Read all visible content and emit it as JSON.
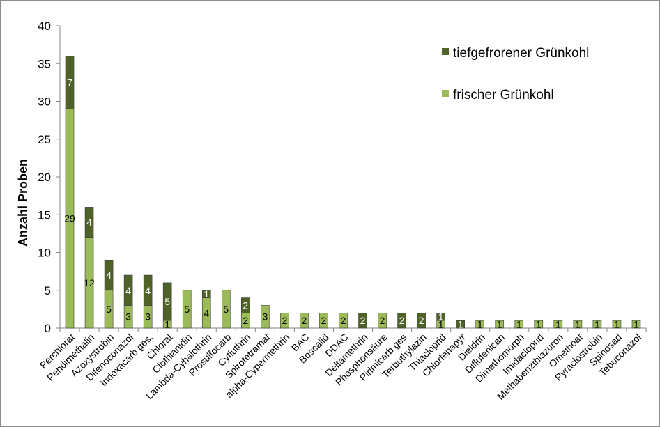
{
  "chart_data": {
    "type": "bar",
    "stacked": true,
    "ylabel": "Anzahl Proben",
    "xlabel": "",
    "ylim": [
      0,
      40
    ],
    "yticks": [
      0,
      5,
      10,
      15,
      20,
      25,
      30,
      35,
      40
    ],
    "grid": false,
    "legend_position": "top-right",
    "categories": [
      "Perchlorat",
      "Pendimethalin",
      "Azoxystrobin",
      "Difenoconazol",
      "Indoxacarb ges.",
      "Chlorat",
      "Clothianidin",
      "Lambda-Cyhalothrin",
      "Prosulfocarb",
      "Cyfluthrin",
      "Spirotetramat",
      "alpha-Cypermethrin",
      "BAC",
      "Boscalid",
      "DDAC",
      "Deltamethrin",
      "Phosphonsäure",
      "Pirimicarb ges",
      "Terbuthylazin",
      "Thiacloprid",
      "Chlorfenapyr",
      "Dieldrin",
      "Diflufenican",
      "Dimethomorph",
      "Imidacloprid",
      "Methabenzthiazuron",
      "Omethoat",
      "Pyraclostrobin",
      "Spinosad",
      "Tebuconazol"
    ],
    "series": [
      {
        "name": "frischer Grünkohl",
        "color": "#9bbb59",
        "label_color": "#000000",
        "values": [
          29,
          12,
          5,
          3,
          3,
          1,
          5,
          4,
          5,
          2,
          3,
          2,
          2,
          2,
          2,
          0,
          2,
          0,
          0,
          1,
          0,
          1,
          1,
          1,
          1,
          1,
          1,
          1,
          1,
          1
        ]
      },
      {
        "name": "tiefgefrorener Grünkohl",
        "color": "#4f6228",
        "label_color": "#ffffff",
        "values": [
          7,
          4,
          4,
          4,
          4,
          5,
          0,
          1,
          0,
          2,
          0,
          0,
          0,
          0,
          0,
          2,
          0,
          2,
          2,
          1,
          1,
          0,
          0,
          0,
          0,
          0,
          0,
          0,
          0,
          0
        ]
      }
    ]
  }
}
